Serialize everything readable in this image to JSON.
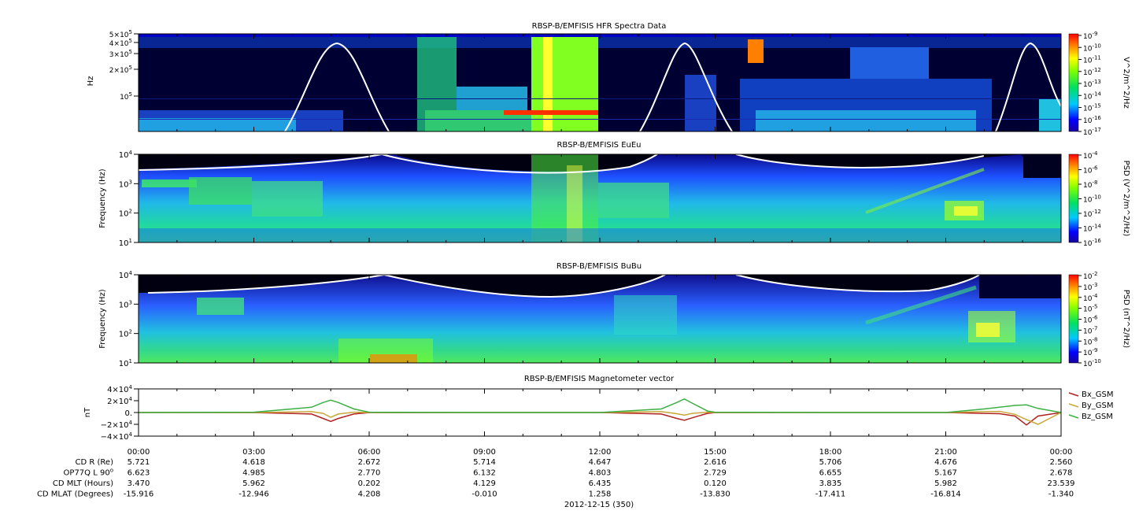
{
  "chart_data": [
    {
      "type": "heatmap",
      "title": "RBSP-B/EMFISIS  HFR Spectra Data",
      "ylabel": "Hz",
      "ylog": true,
      "yticks": [
        {
          "value": 100000,
          "label": "10^5",
          "base": "10",
          "exp": "5",
          "coef": "1"
        },
        {
          "value": 200000,
          "label": "2x10^5",
          "base": "10",
          "exp": "5",
          "coef": "2"
        },
        {
          "value": 300000,
          "label": "3x10^5",
          "base": "10",
          "exp": "5",
          "coef": "3"
        },
        {
          "value": 400000,
          "label": "4x10^5",
          "base": "10",
          "exp": "5",
          "coef": "4"
        },
        {
          "value": 500000,
          "label": "5x10^5",
          "base": "10",
          "exp": "5",
          "coef": "5"
        }
      ],
      "colorbar": {
        "label": "V^2/m^2/Hz",
        "ticks": [
          {
            "base": "10",
            "exp": "-9"
          },
          {
            "base": "10",
            "exp": "-10"
          },
          {
            "base": "10",
            "exp": "-11"
          },
          {
            "base": "10",
            "exp": "-12"
          },
          {
            "base": "10",
            "exp": "-13"
          },
          {
            "base": "10",
            "exp": "-14"
          },
          {
            "base": "10",
            "exp": "-15"
          },
          {
            "base": "10",
            "exp": "-16"
          },
          {
            "base": "10",
            "exp": "-17"
          }
        ]
      }
    },
    {
      "type": "heatmap",
      "title": "RBSP-B/EMFISIS  EuEu",
      "ylabel": "Frequency (Hz)",
      "ylog": true,
      "yticks": [
        {
          "base": "10",
          "exp": "4"
        },
        {
          "base": "10",
          "exp": "3"
        },
        {
          "base": "10",
          "exp": "2"
        },
        {
          "base": "10",
          "exp": "1"
        }
      ],
      "colorbar": {
        "label": "PSD (V^2/m^2/Hz)",
        "ticks": [
          {
            "base": "10",
            "exp": "-4"
          },
          {
            "base": "10",
            "exp": "-6"
          },
          {
            "base": "10",
            "exp": "-8"
          },
          {
            "base": "10",
            "exp": "-10"
          },
          {
            "base": "10",
            "exp": "-12"
          },
          {
            "base": "10",
            "exp": "-14"
          },
          {
            "base": "10",
            "exp": "-16"
          }
        ]
      }
    },
    {
      "type": "heatmap",
      "title": "RBSP-B/EMFISIS  BuBu",
      "ylabel": "Frequency (Hz)",
      "ylog": true,
      "yticks": [
        {
          "base": "10",
          "exp": "4"
        },
        {
          "base": "10",
          "exp": "3"
        },
        {
          "base": "10",
          "exp": "2"
        },
        {
          "base": "10",
          "exp": "1"
        }
      ],
      "colorbar": {
        "label": "PSD (nT^2/Hz)",
        "ticks": [
          {
            "base": "10",
            "exp": "-2"
          },
          {
            "base": "10",
            "exp": "-3"
          },
          {
            "base": "10",
            "exp": "-4"
          },
          {
            "base": "10",
            "exp": "-5"
          },
          {
            "base": "10",
            "exp": "-6"
          },
          {
            "base": "10",
            "exp": "-7"
          },
          {
            "base": "10",
            "exp": "-8"
          },
          {
            "base": "10",
            "exp": "-9"
          },
          {
            "base": "10",
            "exp": "-10"
          }
        ]
      }
    },
    {
      "type": "line",
      "title": "RBSP-B/EMFISIS  Magnetometer vector",
      "ylabel": "nT",
      "ylim": [
        -40000,
        40000
      ],
      "yticks": [
        {
          "value": 40000,
          "coef": "4",
          "base": "10",
          "exp": "4"
        },
        {
          "value": 20000,
          "coef": "2",
          "base": "10",
          "exp": "4"
        },
        {
          "value": 0,
          "coef": "0.",
          "base": "",
          "exp": ""
        },
        {
          "value": -20000,
          "coef": "−2",
          "base": "10",
          "exp": "4"
        },
        {
          "value": -40000,
          "coef": "−4",
          "base": "10",
          "exp": "4"
        }
      ],
      "x_hours": [
        0,
        3,
        4.5,
        4.8,
        5.0,
        5.2,
        5.6,
        6,
        9,
        12,
        13.6,
        14.0,
        14.2,
        14.4,
        14.8,
        15,
        18,
        21,
        22.0,
        22.4,
        22.8,
        23.1,
        23.4,
        24
      ],
      "series": [
        {
          "name": "Bx_GSM",
          "color": "#b22222",
          "values": [
            0,
            -200,
            -2500,
            -10000,
            -15000,
            -10000,
            -2500,
            -200,
            0,
            0,
            -2500,
            -10000,
            -13000,
            -9000,
            -1500,
            -200,
            0,
            0,
            -1500,
            -2000,
            -6000,
            -21000,
            -6000,
            0
          ]
        },
        {
          "name": "By_GSM",
          "color": "#c8a838",
          "values": [
            0,
            0,
            1500,
            -1500,
            -8000,
            -2500,
            500,
            0,
            0,
            0,
            1500,
            -2000,
            -4500,
            -1500,
            500,
            0,
            0,
            0,
            1500,
            1800,
            -3000,
            -12000,
            -20000,
            0
          ]
        },
        {
          "name": "Bz_GSM",
          "color": "#3cb043",
          "values": [
            0,
            500,
            9000,
            17000,
            21000,
            17000,
            6000,
            500,
            0,
            0,
            6000,
            17000,
            23000,
            16000,
            2500,
            500,
            0,
            0,
            6000,
            9000,
            12000,
            13000,
            7000,
            0
          ]
        }
      ]
    }
  ],
  "time_axis": {
    "labels": [
      "00:00",
      "03:00",
      "06:00",
      "09:00",
      "12:00",
      "15:00",
      "18:00",
      "21:00",
      "00:00"
    ],
    "date_label": "2012-12-15 (350)"
  },
  "ephemeris": {
    "rows": [
      {
        "label": "CD R (Re)",
        "values": [
          "5.721",
          "4.618",
          "2.672",
          "5.714",
          "4.647",
          "2.616",
          "5.706",
          "4.676",
          "2.560"
        ]
      },
      {
        "label": "OP77Q L 90",
        "label_sup": "o",
        "values": [
          "6.623",
          "4.985",
          "2.770",
          "6.132",
          "4.803",
          "2.729",
          "6.655",
          "5.167",
          "2.678"
        ]
      },
      {
        "label": "CD MLT (Hours)",
        "values": [
          "3.470",
          "5.962",
          "0.202",
          "4.129",
          "6.435",
          "0.120",
          "3.835",
          "5.982",
          "23.539"
        ]
      },
      {
        "label": "CD MLAT (Degrees)",
        "values": [
          "-15.916",
          "-12.946",
          "4.208",
          "-0.010",
          "1.258",
          "-13.830",
          "-17.411",
          "-16.814",
          "-1.340"
        ]
      }
    ]
  }
}
